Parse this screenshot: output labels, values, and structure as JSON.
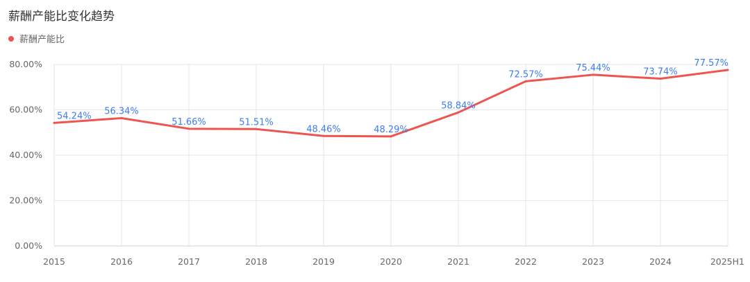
{
  "chart_data": {
    "type": "line",
    "title": "薪酬产能比变化趋势",
    "categories": [
      "2015",
      "2016",
      "2017",
      "2018",
      "2019",
      "2020",
      "2021",
      "2022",
      "2023",
      "2024",
      "2025H1"
    ],
    "series": [
      {
        "name": "薪酬产能比",
        "values": [
          54.24,
          56.34,
          51.66,
          51.51,
          48.46,
          48.29,
          58.84,
          72.57,
          75.44,
          73.74,
          77.57
        ],
        "data_labels": [
          "54.24%",
          "56.34%",
          "51.66%",
          "51.51%",
          "48.46%",
          "48.29%",
          "58.84%",
          "72.57%",
          "75.44%",
          "73.74%",
          "77.57%"
        ],
        "color": "#ee5450"
      }
    ],
    "y_ticks": [
      "0.00%",
      "20.00%",
      "40.00%",
      "60.00%",
      "80.00%"
    ],
    "ylim": [
      0,
      80
    ],
    "grid": true,
    "legend_position": "top-left",
    "label_color": "#3d7df0"
  }
}
